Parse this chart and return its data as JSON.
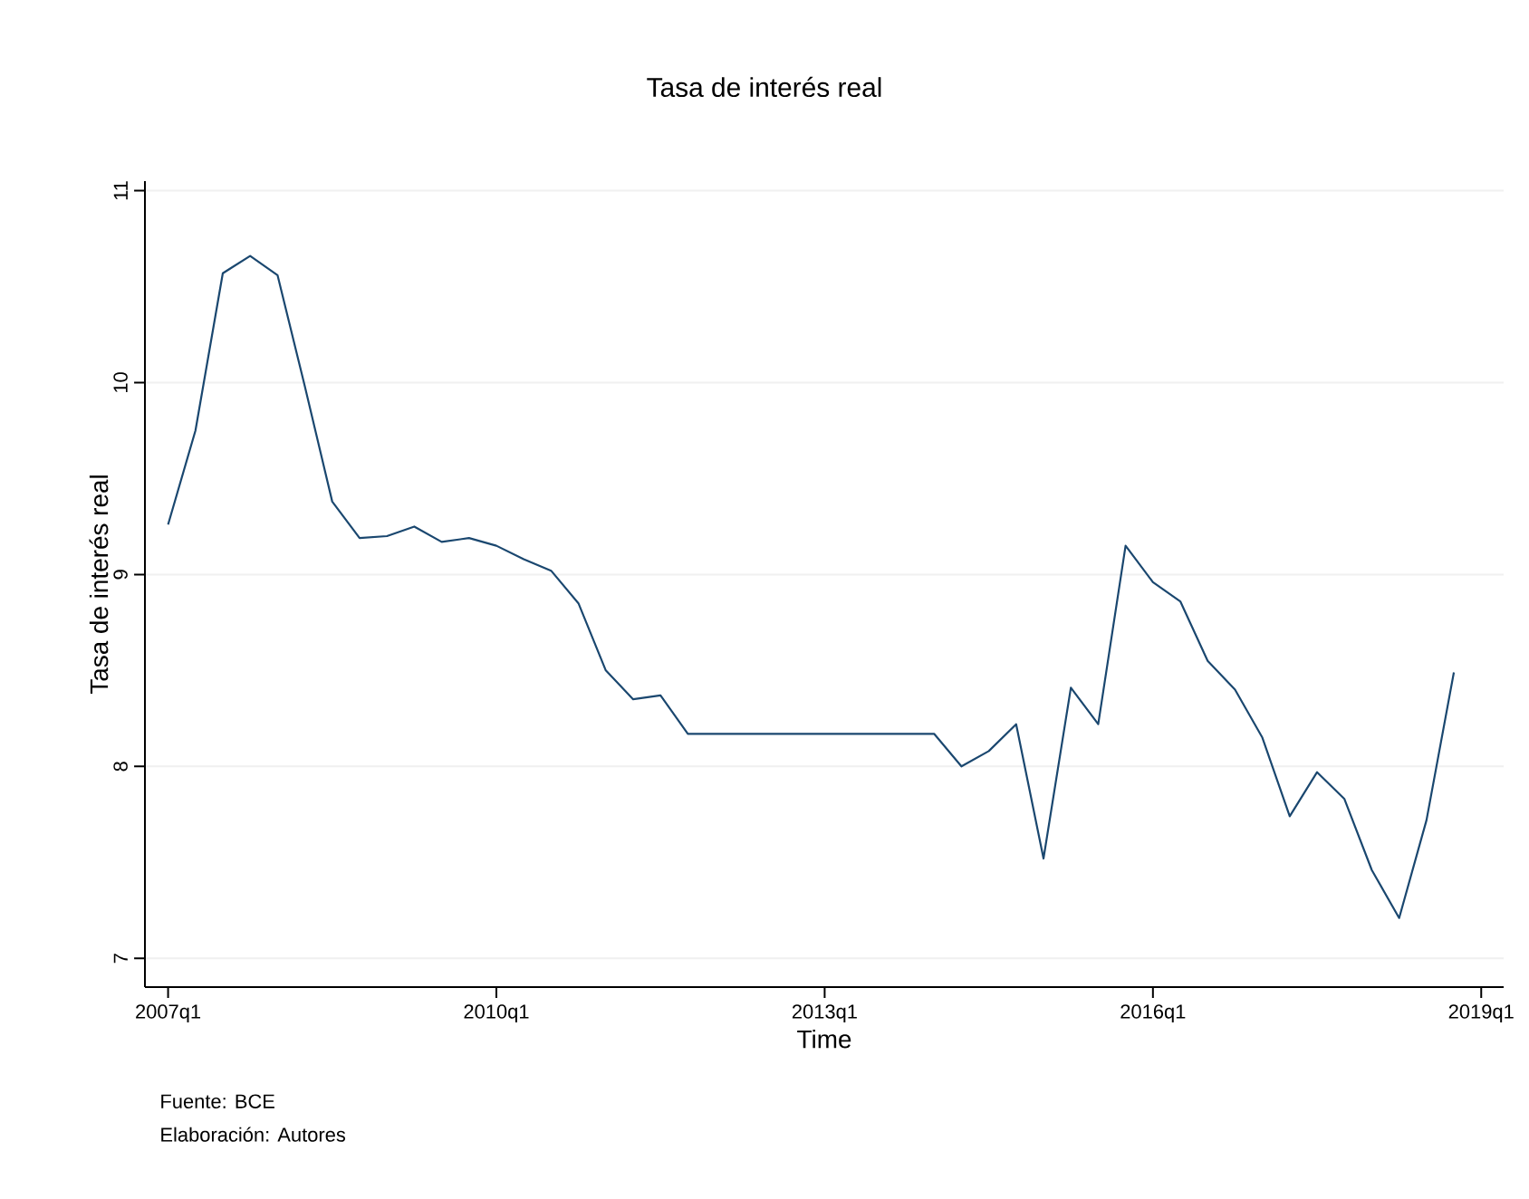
{
  "chart_data": {
    "type": "line",
    "title": "Tasa de interés real",
    "xlabel": "Time",
    "ylabel": "Tasa de interés real",
    "annotations": [
      "Fuente: BCE",
      "Elaboración: Autores"
    ],
    "x": [
      "2007-01",
      "2007-04",
      "2007-07",
      "2007-10",
      "2008-01",
      "2008-04",
      "2008-07",
      "2008-10",
      "2009-01",
      "2009-04",
      "2009-07",
      "2009-10",
      "2010-01",
      "2010-04",
      "2010-07",
      "2010-10",
      "2011-01",
      "2011-04",
      "2011-07",
      "2011-10",
      "2012-01",
      "2012-04",
      "2012-07",
      "2012-10",
      "2013-01",
      "2013-04",
      "2013-07",
      "2013-10",
      "2014-01",
      "2014-04",
      "2014-07",
      "2014-10",
      "2015-01",
      "2015-04",
      "2015-07",
      "2015-10",
      "2016-01",
      "2016-04",
      "2016-07",
      "2016-10",
      "2017-01",
      "2017-04",
      "2017-07",
      "2017-10",
      "2018-01",
      "2018-04",
      "2018-07",
      "2018-10"
    ],
    "series": [
      {
        "color": "#1a476f",
        "values": [
          9.26,
          9.75,
          10.57,
          10.66,
          10.56,
          9.98,
          9.38,
          9.19,
          9.2,
          9.25,
          9.17,
          9.19,
          9.15,
          9.08,
          9.02,
          8.85,
          8.5,
          8.35,
          8.37,
          8.17,
          8.17,
          8.17,
          8.17,
          8.17,
          8.17,
          8.17,
          8.17,
          8.17,
          8.17,
          8.0,
          8.08,
          8.22,
          7.52,
          8.41,
          8.22,
          9.15,
          8.96,
          8.86,
          8.55,
          8.4,
          8.15,
          7.74,
          7.97,
          7.83,
          7.46,
          7.21,
          7.72,
          8.49
        ]
      }
    ],
    "xlim": [
      "2006-10-15",
      "2019-03-15"
    ],
    "ylim": [
      6.85,
      11.05
    ],
    "xticks": [
      {
        "value": "2007-01",
        "label": "2007q1"
      },
      {
        "value": "2010-01",
        "label": "2010q1"
      },
      {
        "value": "2013-01",
        "label": "2013q1"
      },
      {
        "value": "2016-01",
        "label": "2016q1"
      },
      {
        "value": "2019-01",
        "label": "2019q1"
      }
    ],
    "yticks": [
      7,
      8,
      9,
      10,
      11
    ],
    "grid": "y"
  }
}
